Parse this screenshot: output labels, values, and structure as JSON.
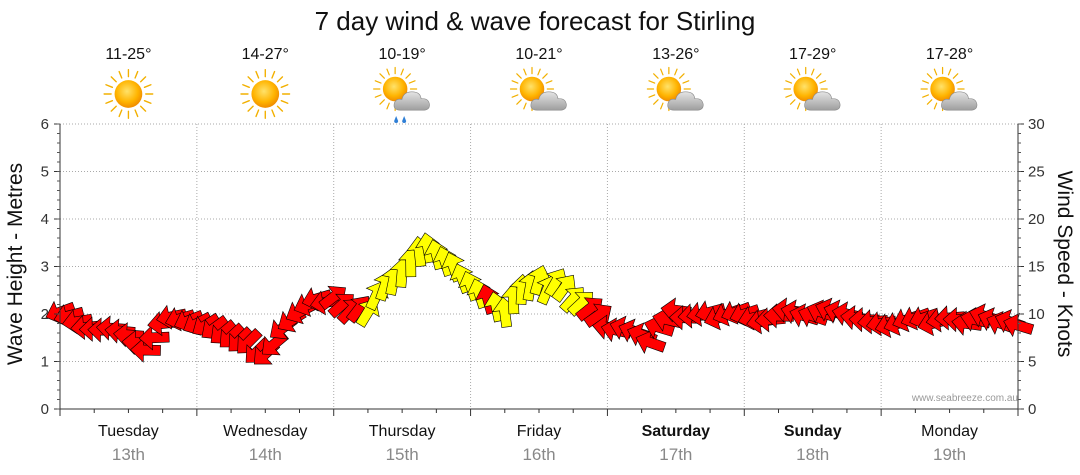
{
  "page": {
    "title": "7 day wind & wave forecast for Stirling",
    "watermark": "www.seabreeze.com.au"
  },
  "days": [
    {
      "name": "Tuesday",
      "date": "13th",
      "bold": false,
      "temp": "11-25°",
      "icon": "sun-icon"
    },
    {
      "name": "Wednesday",
      "date": "14th",
      "bold": false,
      "temp": "14-27°",
      "icon": "sun-icon"
    },
    {
      "name": "Thursday",
      "date": "15th",
      "bold": false,
      "temp": "10-19°",
      "icon": "sun-cloud-rain-icon"
    },
    {
      "name": "Friday",
      "date": "16th",
      "bold": false,
      "temp": "10-21°",
      "icon": "sun-cloud-icon"
    },
    {
      "name": "Saturday",
      "date": "17th",
      "bold": true,
      "temp": "13-26°",
      "icon": "sun-cloud-icon"
    },
    {
      "name": "Sunday",
      "date": "18th",
      "bold": true,
      "temp": "17-29°",
      "icon": "sun-cloud-icon"
    },
    {
      "name": "Monday",
      "date": "19th",
      "bold": false,
      "temp": "17-28°",
      "icon": "sun-cloud-icon"
    }
  ],
  "chart_data": {
    "type": "line",
    "title": "7 day wind & wave forecast for Stirling",
    "xlabel": "",
    "ylabel_left": "Wave Height - Metres",
    "ylabel_right": "Wind Speed - Knots",
    "ylim_left": [
      0,
      6
    ],
    "ylim_right": [
      0,
      30
    ],
    "yticks_left": [
      0,
      1,
      2,
      3,
      4,
      5,
      6
    ],
    "yticks_right": [
      0,
      5,
      10,
      15,
      20,
      25,
      30
    ],
    "grid": true,
    "x_unit": "hours from start of Tuesday 13th",
    "x_range": [
      0,
      168
    ],
    "colors": {
      "light_wind": "#ffff00",
      "strong_wind": "#ff0000",
      "outline": "#000000",
      "grid": "#aaaaaa"
    },
    "series": [
      {
        "name": "Wind Speed - Knots",
        "axis": "right",
        "points": [
          [
            0,
            10.2
          ],
          [
            1.5,
            9.8
          ],
          [
            3,
            9.2
          ],
          [
            4.5,
            8.6
          ],
          [
            6,
            8.4
          ],
          [
            7.5,
            8.3
          ],
          [
            9,
            8.5
          ],
          [
            10.5,
            8.2
          ],
          [
            12,
            7.8
          ],
          [
            13.5,
            7.0
          ],
          [
            15,
            6.2
          ],
          [
            16.5,
            7.5
          ],
          [
            18,
            9.0
          ],
          [
            19.5,
            9.7
          ],
          [
            21,
            9.5
          ],
          [
            22.5,
            9.3
          ],
          [
            24,
            9.0
          ],
          [
            25.5,
            8.8
          ],
          [
            27,
            8.5
          ],
          [
            28.5,
            8.0
          ],
          [
            30,
            7.6
          ],
          [
            31.5,
            7.2
          ],
          [
            33,
            7.0
          ],
          [
            34.5,
            6.0
          ],
          [
            36,
            5.8
          ],
          [
            37.5,
            6.8
          ],
          [
            39,
            8.5
          ],
          [
            40.5,
            9.3
          ],
          [
            42,
            10.2
          ],
          [
            43.5,
            11.0
          ],
          [
            45,
            11.6
          ],
          [
            46.5,
            11.2
          ],
          [
            48,
            11.8
          ],
          [
            49.5,
            11.0
          ],
          [
            51,
            10.4
          ],
          [
            52.5,
            10.6
          ],
          [
            54,
            10.2
          ],
          [
            55.5,
            12.0
          ],
          [
            57,
            13.0
          ],
          [
            58.5,
            13.6
          ],
          [
            60,
            14.4
          ],
          [
            61.5,
            15.5
          ],
          [
            63,
            16.6
          ],
          [
            64.5,
            17.0
          ],
          [
            66,
            16.3
          ],
          [
            67.5,
            15.6
          ],
          [
            69,
            15.0
          ],
          [
            70.5,
            13.8
          ],
          [
            72,
            13.0
          ],
          [
            73.5,
            12.2
          ],
          [
            75,
            11.6
          ],
          [
            76.5,
            10.8
          ],
          [
            78,
            10.2
          ],
          [
            79.5,
            11.6
          ],
          [
            81,
            12.6
          ],
          [
            82.5,
            13.0
          ],
          [
            84,
            13.6
          ],
          [
            85.5,
            12.6
          ],
          [
            87,
            13.4
          ],
          [
            88.5,
            12.8
          ],
          [
            90,
            11.6
          ],
          [
            91.5,
            11.2
          ],
          [
            93,
            10.6
          ],
          [
            94.5,
            9.9
          ],
          [
            96,
            8.6
          ],
          [
            97.5,
            8.3
          ],
          [
            99,
            8.5
          ],
          [
            100.5,
            8.2
          ],
          [
            102,
            7.8
          ],
          [
            103.5,
            7.0
          ],
          [
            105,
            8.6
          ],
          [
            106.5,
            9.4
          ],
          [
            108,
            10.4
          ],
          [
            109.5,
            9.6
          ],
          [
            111,
            9.8
          ],
          [
            112.5,
            10.0
          ],
          [
            114,
            10.2
          ],
          [
            115.5,
            9.6
          ],
          [
            117,
            10.0
          ],
          [
            118.5,
            10.2
          ],
          [
            120,
            10.0
          ],
          [
            121.5,
            9.6
          ],
          [
            123,
            9.2
          ],
          [
            124.5,
            9.4
          ],
          [
            126,
            9.8
          ],
          [
            127.5,
            10.4
          ],
          [
            129,
            10.2
          ],
          [
            130.5,
            9.8
          ],
          [
            132,
            9.8
          ],
          [
            133.5,
            10.2
          ],
          [
            135,
            10.4
          ],
          [
            136.5,
            10.2
          ],
          [
            138,
            10.0
          ],
          [
            139.5,
            9.6
          ],
          [
            141,
            9.4
          ],
          [
            142.5,
            9.2
          ],
          [
            144,
            9.0
          ],
          [
            145.5,
            8.8
          ],
          [
            147,
            9.0
          ],
          [
            148.5,
            9.4
          ],
          [
            150,
            9.6
          ],
          [
            151.5,
            9.6
          ],
          [
            153,
            9.0
          ],
          [
            154.5,
            9.4
          ],
          [
            156,
            9.6
          ],
          [
            157.5,
            9.4
          ],
          [
            159,
            9.0
          ],
          [
            160.5,
            9.4
          ],
          [
            162,
            9.8
          ],
          [
            163.5,
            9.4
          ],
          [
            165,
            9.0
          ],
          [
            166.5,
            9.2
          ],
          [
            168,
            8.8
          ]
        ]
      }
    ],
    "color_rule": "yellow when wind speed is 11–17 knots and the day is Thursday or Friday; red otherwise",
    "yellow_ranges_hours": [
      [
        54,
        73.5
      ],
      [
        76.5,
        91.5
      ]
    ]
  }
}
